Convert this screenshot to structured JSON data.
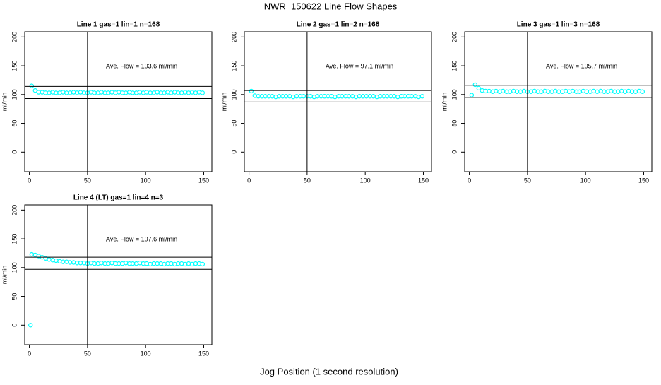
{
  "page": {
    "title": "NWR_150622  Line Flow Shapes",
    "xlabel": "Jog Position (1 second resolution)"
  },
  "chart_data": [
    {
      "type": "scatter",
      "title": "Line 1 gas=1 lin=1 n=168",
      "ylabel": "ml/min",
      "annotation": "Ave. Flow =  103.6  ml/min",
      "color": "#00ffff",
      "xlim": [
        -4,
        157
      ],
      "ylim": [
        -34,
        209
      ],
      "xticks": [
        0,
        50,
        100,
        150
      ],
      "yticks": [
        0,
        50,
        100,
        150,
        200
      ],
      "hlines": [
        114,
        93
      ],
      "vlines": [
        50
      ],
      "x": [
        2,
        5,
        8,
        11,
        14,
        17,
        20,
        23,
        26,
        29,
        32,
        35,
        38,
        41,
        44,
        47,
        50,
        53,
        56,
        59,
        62,
        65,
        68,
        71,
        74,
        77,
        80,
        83,
        86,
        89,
        92,
        95,
        98,
        101,
        104,
        107,
        110,
        113,
        116,
        119,
        122,
        125,
        128,
        131,
        134,
        137,
        140,
        143,
        146,
        149
      ],
      "values": [
        115,
        107,
        104,
        104,
        103,
        103,
        104,
        103,
        103,
        104,
        103,
        103,
        104,
        103,
        104,
        103,
        103,
        104,
        103,
        103,
        104,
        103,
        103,
        104,
        103,
        104,
        103,
        103,
        104,
        103,
        103,
        104,
        103,
        104,
        103,
        103,
        104,
        103,
        103,
        104,
        103,
        104,
        103,
        103,
        104,
        103,
        104,
        103,
        104,
        103
      ]
    },
    {
      "type": "scatter",
      "title": "Line 2 gas=1 lin=2 n=168",
      "ylabel": "ml/min",
      "annotation": "Ave. Flow =  97.1  ml/min",
      "color": "#00ffff",
      "xlim": [
        -4,
        157
      ],
      "ylim": [
        -34,
        209
      ],
      "xticks": [
        0,
        50,
        100,
        150
      ],
      "yticks": [
        0,
        50,
        100,
        150,
        200
      ],
      "hlines": [
        107,
        87
      ],
      "vlines": [
        50
      ],
      "x": [
        2,
        5,
        8,
        11,
        14,
        17,
        20,
        23,
        26,
        29,
        32,
        35,
        38,
        41,
        44,
        47,
        50,
        53,
        56,
        59,
        62,
        65,
        68,
        71,
        74,
        77,
        80,
        83,
        86,
        89,
        92,
        95,
        98,
        101,
        104,
        107,
        110,
        113,
        116,
        119,
        122,
        125,
        128,
        131,
        134,
        137,
        140,
        143,
        146,
        149
      ],
      "values": [
        106,
        98,
        97,
        97,
        97,
        97,
        97,
        96,
        97,
        97,
        97,
        97,
        96,
        97,
        97,
        97,
        97,
        97,
        96,
        97,
        97,
        97,
        97,
        97,
        96,
        97,
        97,
        97,
        97,
        97,
        96,
        97,
        97,
        97,
        97,
        97,
        96,
        97,
        97,
        97,
        97,
        97,
        96,
        97,
        97,
        97,
        97,
        97,
        96,
        97
      ]
    },
    {
      "type": "scatter",
      "title": "Line 3 gas=1 lin=3 n=168",
      "ylabel": "ml/min",
      "annotation": "Ave. Flow =  105.7  ml/min",
      "color": "#00ffff",
      "xlim": [
        -4,
        157
      ],
      "ylim": [
        -34,
        209
      ],
      "xticks": [
        0,
        50,
        100,
        150
      ],
      "yticks": [
        0,
        50,
        100,
        150,
        200
      ],
      "hlines": [
        116,
        95
      ],
      "vlines": [
        50
      ],
      "x": [
        2,
        5,
        8,
        11,
        14,
        17,
        20,
        23,
        26,
        29,
        32,
        35,
        38,
        41,
        44,
        47,
        50,
        53,
        56,
        59,
        62,
        65,
        68,
        71,
        74,
        77,
        80,
        83,
        86,
        89,
        92,
        95,
        98,
        101,
        104,
        107,
        110,
        113,
        116,
        119,
        122,
        125,
        128,
        131,
        134,
        137,
        140,
        143,
        146,
        149
      ],
      "values": [
        99,
        117,
        111,
        107,
        106,
        106,
        105,
        106,
        105,
        106,
        105,
        105,
        106,
        105,
        105,
        106,
        105,
        105,
        106,
        105,
        105,
        106,
        105,
        105,
        106,
        105,
        105,
        106,
        105,
        106,
        105,
        105,
        106,
        105,
        105,
        106,
        105,
        106,
        105,
        105,
        106,
        105,
        105,
        106,
        105,
        106,
        105,
        105,
        106,
        105
      ]
    },
    {
      "type": "scatter",
      "title": "Line 4 (LT) gas=1 lin=4 n=3",
      "ylabel": "ml/min",
      "annotation": "Ave. Flow =  107.6  ml/min",
      "color": "#00ffff",
      "xlim": [
        -4,
        157
      ],
      "ylim": [
        -34,
        209
      ],
      "xticks": [
        0,
        50,
        100,
        150
      ],
      "yticks": [
        0,
        50,
        100,
        150,
        200
      ],
      "hlines": [
        118,
        97
      ],
      "vlines": [
        50
      ],
      "x": [
        1,
        2,
        5,
        8,
        11,
        14,
        17,
        20,
        23,
        26,
        29,
        32,
        35,
        38,
        41,
        44,
        47,
        50,
        53,
        56,
        59,
        62,
        65,
        68,
        71,
        74,
        77,
        80,
        83,
        86,
        89,
        92,
        95,
        98,
        101,
        104,
        107,
        110,
        113,
        116,
        119,
        122,
        125,
        128,
        131,
        134,
        137,
        140,
        143,
        146,
        149
      ],
      "values": [
        0,
        123,
        122,
        120,
        118,
        116,
        114,
        113,
        112,
        111,
        110,
        110,
        109,
        109,
        108,
        108,
        108,
        107,
        108,
        107,
        107,
        108,
        107,
        107,
        108,
        107,
        107,
        107,
        108,
        107,
        107,
        107,
        108,
        107,
        107,
        106,
        107,
        107,
        107,
        106,
        107,
        107,
        106,
        107,
        107,
        106,
        107,
        106,
        107,
        107,
        106
      ]
    }
  ]
}
